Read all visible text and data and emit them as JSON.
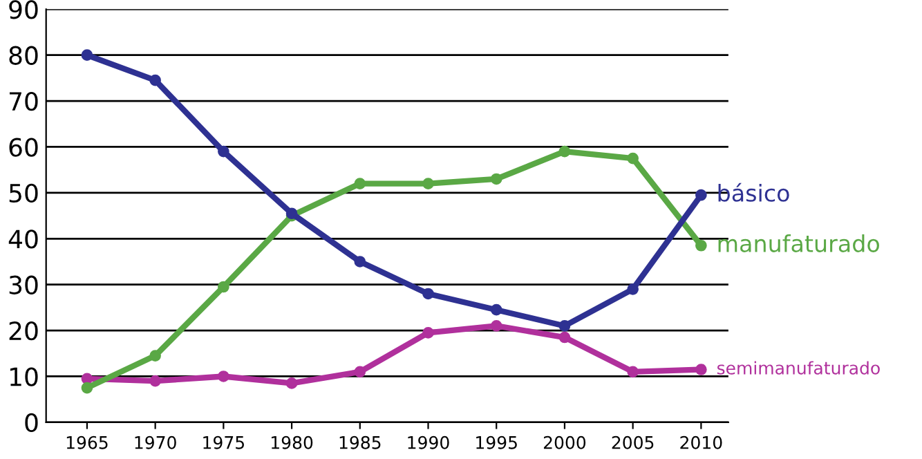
{
  "chart_data": {
    "type": "line",
    "x": [
      1965,
      1970,
      1975,
      1980,
      1985,
      1990,
      1995,
      2000,
      2005,
      2010
    ],
    "xlim": [
      1962,
      2012
    ],
    "xticks": [
      1965,
      1970,
      1975,
      1980,
      1985,
      1990,
      1995,
      2000,
      2005,
      2010
    ],
    "ylim": [
      0,
      90
    ],
    "yticks": [
      0,
      10,
      20,
      30,
      40,
      50,
      60,
      70,
      80,
      90
    ],
    "grid": "y",
    "marker": "circle",
    "line_style": "solid",
    "legend": false,
    "series": [
      {
        "name": "básico",
        "color": "#2e3192",
        "values": [
          80,
          74.5,
          59,
          45.5,
          35,
          28,
          24.5,
          21,
          29,
          49.5
        ]
      },
      {
        "name": "manufaturado",
        "color": "#5aa845",
        "values": [
          7.5,
          14.5,
          29.5,
          45,
          52,
          52,
          53,
          59,
          57.5,
          38.5
        ]
      },
      {
        "name": "semimanufaturado",
        "color": "#b0309c",
        "values": [
          9.5,
          9,
          10,
          8.5,
          11,
          19.5,
          21,
          18.5,
          11,
          11.5
        ]
      }
    ]
  }
}
